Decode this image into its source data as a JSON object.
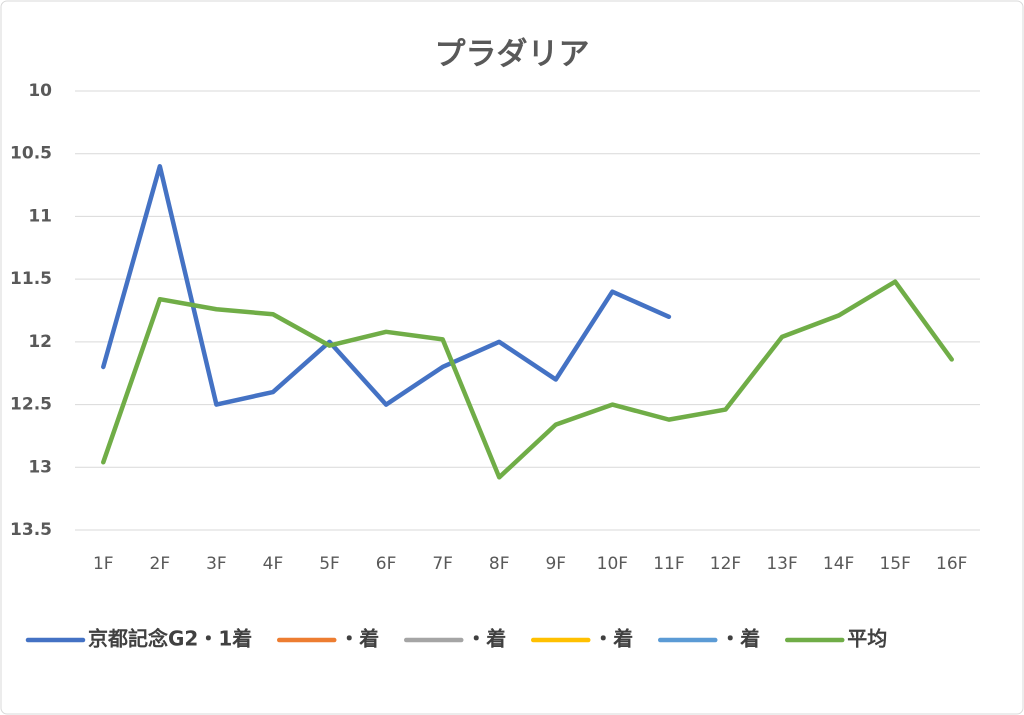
{
  "chart_data": {
    "type": "line",
    "title": "プラダリア",
    "categories": [
      "1F",
      "2F",
      "3F",
      "4F",
      "5F",
      "6F",
      "7F",
      "8F",
      "9F",
      "10F",
      "11F",
      "12F",
      "13F",
      "14F",
      "15F",
      "16F"
    ],
    "series": [
      {
        "name": "京都記念G2・1着",
        "color": "#4472c4",
        "values": [
          12.2,
          10.6,
          12.5,
          12.4,
          12.0,
          12.5,
          12.2,
          12.0,
          12.3,
          11.6,
          11.8,
          null,
          null,
          null,
          null,
          null
        ]
      },
      {
        "name": "・着",
        "color": "#ed7d31",
        "values": [
          null,
          null,
          null,
          null,
          null,
          null,
          null,
          null,
          null,
          null,
          null,
          null,
          null,
          null,
          null,
          null
        ]
      },
      {
        "name": "・着",
        "color": "#a5a5a5",
        "values": [
          null,
          null,
          null,
          null,
          null,
          null,
          null,
          null,
          null,
          null,
          null,
          null,
          null,
          null,
          null,
          null
        ]
      },
      {
        "name": "・着",
        "color": "#ffc000",
        "values": [
          null,
          null,
          null,
          null,
          null,
          null,
          null,
          null,
          null,
          null,
          null,
          null,
          null,
          null,
          null,
          null
        ]
      },
      {
        "name": "・着",
        "color": "#5b9bd5",
        "values": [
          null,
          null,
          null,
          null,
          null,
          null,
          null,
          null,
          null,
          null,
          null,
          null,
          null,
          null,
          null,
          null
        ]
      },
      {
        "name": "平均",
        "color": "#70ad47",
        "values": [
          12.96,
          11.66,
          11.74,
          11.78,
          12.03,
          11.92,
          11.98,
          13.08,
          12.66,
          12.5,
          12.62,
          12.54,
          11.96,
          11.79,
          11.52,
          12.14
        ]
      }
    ],
    "ylim": [
      10,
      13.5
    ],
    "yticks": [
      10,
      10.5,
      11,
      11.5,
      12,
      12.5,
      13,
      13.5
    ],
    "y_reversed": true,
    "grid": true,
    "legend": "bottom"
  }
}
